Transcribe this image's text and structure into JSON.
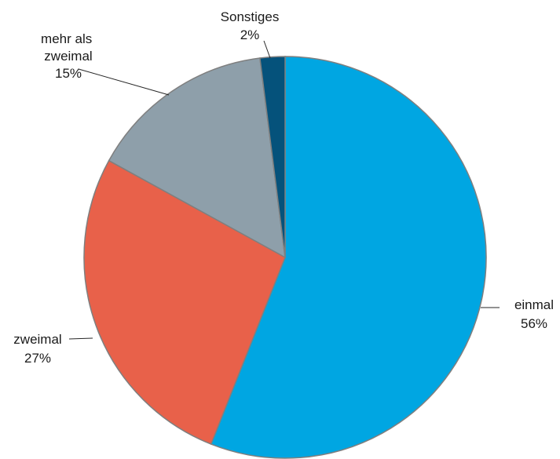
{
  "chart_data": {
    "type": "pie",
    "title": "",
    "start_angle_deg": 0,
    "direction": "clockwise",
    "legend": "none",
    "slices": [
      {
        "name": "einmal",
        "value": 56,
        "value_label": "56%",
        "color": "#00a6e2"
      },
      {
        "name": "zweimal",
        "value": 27,
        "value_label": "27%",
        "color": "#e8614a"
      },
      {
        "name": "mehr als zweimal",
        "value": 15,
        "value_label": "15%",
        "color": "#8e9faa"
      },
      {
        "name": "Sonstiges",
        "value": 2,
        "value_label": "2%",
        "color": "#05527b"
      }
    ]
  }
}
